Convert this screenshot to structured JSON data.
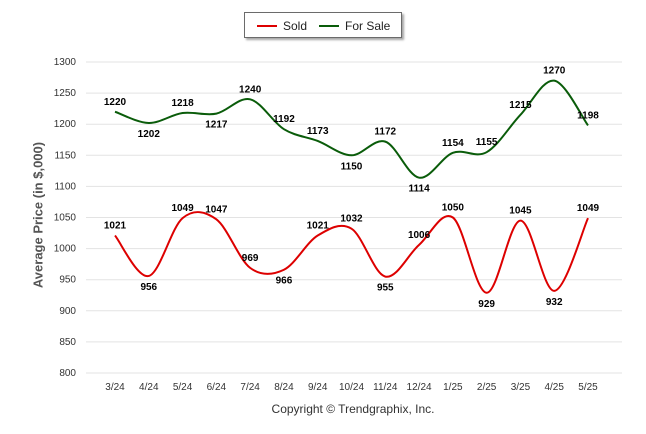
{
  "legend": {
    "sold_label": "Sold",
    "forsale_label": "For Sale"
  },
  "y_title": "Average Price (in $,000)",
  "copyright": "Copyright © Trendgraphix, Inc.",
  "colors": {
    "sold": "#dd0000",
    "forsale": "#0a5c0a",
    "grid": "#e3e3e3"
  },
  "chart_data": {
    "type": "line",
    "categories": [
      "3/24",
      "4/24",
      "5/24",
      "6/24",
      "7/24",
      "8/24",
      "9/24",
      "10/24",
      "11/24",
      "12/24",
      "1/25",
      "2/25",
      "3/25",
      "4/25",
      "5/25"
    ],
    "series": [
      {
        "name": "Sold",
        "values": [
          1021,
          956,
          1049,
          1047,
          969,
          966,
          1021,
          1032,
          955,
          1006,
          1050,
          929,
          1045,
          932,
          1049
        ]
      },
      {
        "name": "For Sale",
        "values": [
          1220,
          1202,
          1218,
          1217,
          1240,
          1192,
          1173,
          1150,
          1172,
          1114,
          1154,
          1155,
          1215,
          1270,
          1198
        ]
      }
    ],
    "ylabel": "Average Price (in $,000)",
    "ylim": [
      800,
      1300
    ],
    "yticks": [
      800,
      850,
      900,
      950,
      1000,
      1050,
      1100,
      1150,
      1200,
      1250,
      1300
    ],
    "grid": true,
    "legend_position": "top-center"
  }
}
